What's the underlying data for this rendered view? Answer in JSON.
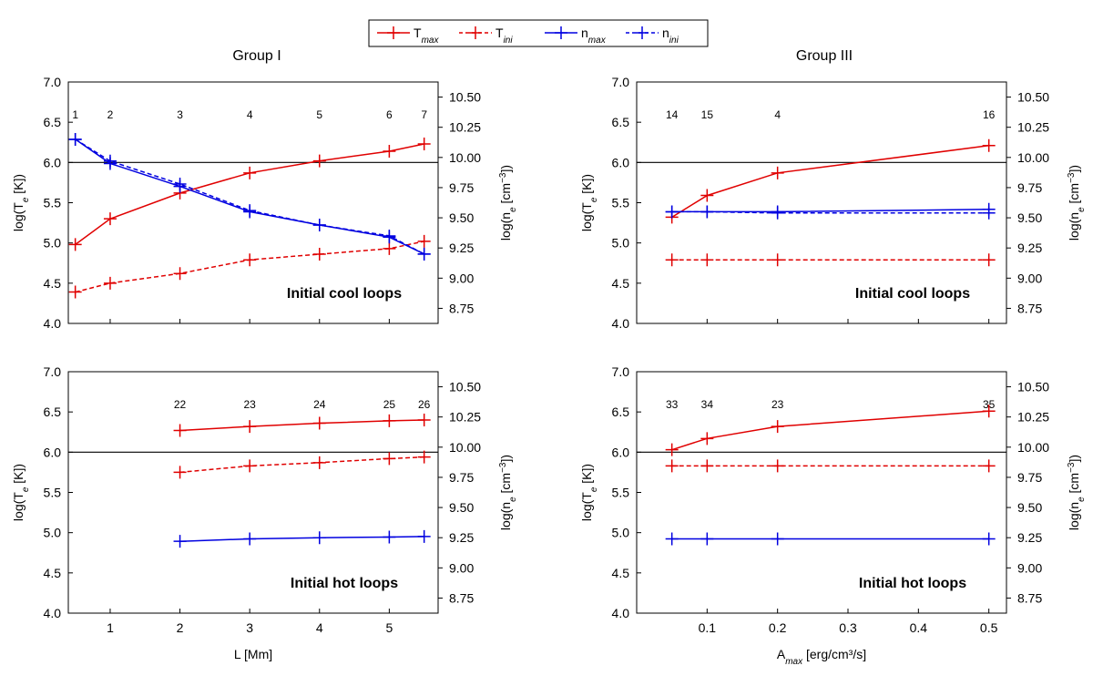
{
  "legend": {
    "items": [
      {
        "label": "T",
        "sub": "max",
        "color": "#e00000",
        "dash": false
      },
      {
        "label": "T",
        "sub": "ini",
        "color": "#e00000",
        "dash": true
      },
      {
        "label": "n",
        "sub": "max",
        "color": "#0000e0",
        "dash": false
      },
      {
        "label": "n",
        "sub": "ini",
        "color": "#0000e0",
        "dash": true
      }
    ]
  },
  "groups": {
    "left": "Group  I",
    "right": "Group  III"
  },
  "axis_labels": {
    "y_left_prefix": "log(T",
    "y_left_sub": "e",
    "y_left_suffix": " [K])",
    "y_right_prefix": "log(n",
    "y_right_sub": "e",
    "y_right_mid": " [cm",
    "y_right_sup": "−3",
    "y_right_suffix": "])",
    "x_left": "L [Mm]",
    "x_right_prefix": "A",
    "x_right_sub": "max",
    "x_right_suffix": " [erg/cm³/s]"
  },
  "colors": {
    "temperature": "#e00000",
    "density": "#0000e0",
    "reference": "#000000"
  },
  "chart_data": [
    {
      "id": "group1-cool",
      "type": "line",
      "group": "Group  I",
      "annotation": "Initial cool  loops",
      "xlim": [
        0.4,
        5.7
      ],
      "ylim": [
        4.0,
        7.0
      ],
      "y2lim": [
        8.625,
        10.625
      ],
      "y_ticks": [
        "4.0",
        "4.5",
        "5.0",
        "5.5",
        "6.0",
        "6.5",
        "7.0"
      ],
      "y2_ticks": [
        "8.75",
        "9.00",
        "9.25",
        "9.50",
        "9.75",
        "10.00",
        "10.25",
        "10.50"
      ],
      "x_ticks": [],
      "hline": 6.0,
      "point_labels": [
        {
          "x": 0.5,
          "t": "1"
        },
        {
          "x": 1,
          "t": "2"
        },
        {
          "x": 2,
          "t": "3"
        },
        {
          "x": 3,
          "t": "4"
        },
        {
          "x": 4,
          "t": "5"
        },
        {
          "x": 5,
          "t": "6"
        },
        {
          "x": 5.5,
          "t": "7"
        }
      ],
      "series": [
        {
          "name": "T_max",
          "axis": "left",
          "color": "#e00000",
          "dash": false,
          "x": [
            0.5,
            1,
            2,
            3,
            4,
            5,
            5.5
          ],
          "y": [
            4.98,
            5.3,
            5.62,
            5.87,
            6.02,
            6.14,
            6.23
          ]
        },
        {
          "name": "T_ini",
          "axis": "left",
          "color": "#e00000",
          "dash": true,
          "x": [
            0.5,
            1,
            2,
            3,
            4,
            5,
            5.5
          ],
          "y": [
            4.39,
            4.5,
            4.62,
            4.79,
            4.86,
            4.93,
            5.02
          ]
        },
        {
          "name": "n_max",
          "axis": "right",
          "color": "#0000e0",
          "dash": false,
          "x": [
            0.5,
            1,
            2,
            3,
            4,
            5,
            5.5
          ],
          "y": [
            10.15,
            9.95,
            9.76,
            9.55,
            9.44,
            9.34,
            9.2
          ]
        },
        {
          "name": "n_ini",
          "axis": "right",
          "color": "#0000e0",
          "dash": true,
          "x": [
            0.5,
            1,
            2,
            3,
            4,
            5,
            5.5
          ],
          "y": [
            10.15,
            9.97,
            9.78,
            9.56,
            9.44,
            9.35,
            9.2
          ]
        }
      ]
    },
    {
      "id": "group3-cool",
      "type": "line",
      "group": "Group  III",
      "annotation": "Initial cool  loops",
      "xlim": [
        0.0,
        0.525
      ],
      "ylim": [
        4.0,
        7.0
      ],
      "y2lim": [
        8.625,
        10.625
      ],
      "y_ticks": [
        "4.0",
        "4.5",
        "5.0",
        "5.5",
        "6.0",
        "6.5",
        "7.0"
      ],
      "y2_ticks": [
        "8.75",
        "9.00",
        "9.25",
        "9.50",
        "9.75",
        "10.00",
        "10.25",
        "10.50"
      ],
      "x_ticks": [],
      "hline": 6.0,
      "point_labels": [
        {
          "x": 0.05,
          "t": "14"
        },
        {
          "x": 0.1,
          "t": "15"
        },
        {
          "x": 0.2,
          "t": "4"
        },
        {
          "x": 0.5,
          "t": "16"
        }
      ],
      "series": [
        {
          "name": "T_max",
          "axis": "left",
          "color": "#e00000",
          "dash": false,
          "x": [
            0.05,
            0.1,
            0.2,
            0.5
          ],
          "y": [
            5.32,
            5.59,
            5.87,
            6.21
          ]
        },
        {
          "name": "T_ini",
          "axis": "left",
          "color": "#e00000",
          "dash": true,
          "x": [
            0.05,
            0.1,
            0.2,
            0.5
          ],
          "y": [
            4.79,
            4.79,
            4.79,
            4.79
          ]
        },
        {
          "name": "n_max",
          "axis": "right",
          "color": "#0000e0",
          "dash": false,
          "x": [
            0.05,
            0.1,
            0.2,
            0.5
          ],
          "y": [
            9.55,
            9.55,
            9.55,
            9.57
          ]
        },
        {
          "name": "n_ini",
          "axis": "right",
          "color": "#0000e0",
          "dash": true,
          "x": [
            0.05,
            0.1,
            0.2,
            0.5
          ],
          "y": [
            9.55,
            9.55,
            9.54,
            9.54
          ]
        }
      ]
    },
    {
      "id": "group1-hot",
      "type": "line",
      "group": "Group  I",
      "annotation": "Initial hot  loops",
      "xlim": [
        0.4,
        5.7
      ],
      "ylim": [
        4.0,
        7.0
      ],
      "y2lim": [
        8.625,
        10.625
      ],
      "y_ticks": [
        "4.0",
        "4.5",
        "5.0",
        "5.5",
        "6.0",
        "6.5",
        "7.0"
      ],
      "y2_ticks": [
        "8.75",
        "9.00",
        "9.25",
        "9.50",
        "9.75",
        "10.00",
        "10.25",
        "10.50"
      ],
      "x_ticks": [
        "1",
        "2",
        "3",
        "4",
        "5"
      ],
      "x_tick_values": [
        1,
        2,
        3,
        4,
        5
      ],
      "xlabel": "L [Mm]",
      "hline": 6.0,
      "point_labels": [
        {
          "x": 2,
          "t": "22"
        },
        {
          "x": 3,
          "t": "23"
        },
        {
          "x": 4,
          "t": "24"
        },
        {
          "x": 5,
          "t": "25"
        },
        {
          "x": 5.5,
          "t": "26"
        }
      ],
      "series": [
        {
          "name": "T_max",
          "axis": "left",
          "color": "#e00000",
          "dash": false,
          "x": [
            2,
            3,
            4,
            5,
            5.5
          ],
          "y": [
            6.27,
            6.32,
            6.36,
            6.39,
            6.4
          ]
        },
        {
          "name": "T_ini",
          "axis": "left",
          "color": "#e00000",
          "dash": true,
          "x": [
            2,
            3,
            4,
            5,
            5.5
          ],
          "y": [
            5.75,
            5.83,
            5.87,
            5.92,
            5.94
          ]
        },
        {
          "name": "n_max",
          "axis": "right",
          "color": "#0000e0",
          "dash": false,
          "x": [
            2,
            3,
            4,
            5,
            5.5
          ],
          "y": [
            9.22,
            9.24,
            9.25,
            9.255,
            9.26
          ]
        }
      ]
    },
    {
      "id": "group3-hot",
      "type": "line",
      "group": "Group  III",
      "annotation": "Initial hot  loops",
      "xlim": [
        0.0,
        0.525
      ],
      "ylim": [
        4.0,
        7.0
      ],
      "y2lim": [
        8.625,
        10.625
      ],
      "y_ticks": [
        "4.0",
        "4.5",
        "5.0",
        "5.5",
        "6.0",
        "6.5",
        "7.0"
      ],
      "y2_ticks": [
        "8.75",
        "9.00",
        "9.25",
        "9.50",
        "9.75",
        "10.00",
        "10.25",
        "10.50"
      ],
      "x_ticks": [
        "0.1",
        "0.2",
        "0.3",
        "0.4",
        "0.5"
      ],
      "x_tick_values": [
        0.1,
        0.2,
        0.3,
        0.4,
        0.5
      ],
      "xlabel": "A_max [erg/cm3/s]",
      "hline": 6.0,
      "point_labels": [
        {
          "x": 0.05,
          "t": "33"
        },
        {
          "x": 0.1,
          "t": "34"
        },
        {
          "x": 0.2,
          "t": "23"
        },
        {
          "x": 0.5,
          "t": "35"
        }
      ],
      "series": [
        {
          "name": "T_max",
          "axis": "left",
          "color": "#e00000",
          "dash": false,
          "x": [
            0.05,
            0.1,
            0.2,
            0.5
          ],
          "y": [
            6.03,
            6.17,
            6.32,
            6.51
          ]
        },
        {
          "name": "T_ini",
          "axis": "left",
          "color": "#e00000",
          "dash": true,
          "x": [
            0.05,
            0.1,
            0.2,
            0.5
          ],
          "y": [
            5.83,
            5.83,
            5.83,
            5.83
          ]
        },
        {
          "name": "n_max",
          "axis": "right",
          "color": "#0000e0",
          "dash": false,
          "x": [
            0.05,
            0.1,
            0.2,
            0.5
          ],
          "y": [
            9.24,
            9.24,
            9.24,
            9.24
          ]
        }
      ]
    }
  ]
}
